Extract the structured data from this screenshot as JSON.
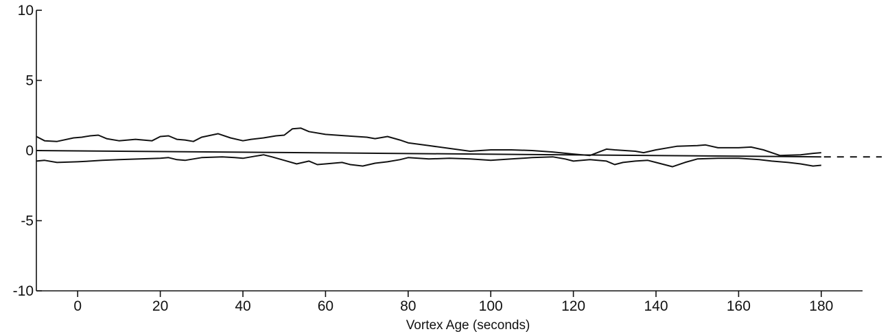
{
  "chart_data": {
    "type": "line",
    "xlabel": "Vortex Age (seconds)",
    "ylabel": "",
    "xlim": [
      -10,
      190
    ],
    "ylim": [
      -10,
      10
    ],
    "x_ticks": [
      0,
      20,
      40,
      60,
      80,
      100,
      120,
      140,
      160,
      180
    ],
    "y_ticks": [
      10,
      5,
      0,
      -5,
      -10
    ],
    "grid": false,
    "series": [
      {
        "role": "mean",
        "x": [
          -10,
          180
        ],
        "y": [
          0.0,
          -0.45
        ]
      },
      {
        "role": "upper bound",
        "x": [
          -10,
          -8,
          -5,
          -1,
          1,
          3,
          5,
          7,
          10,
          14,
          18,
          20,
          22,
          24,
          26,
          28,
          30,
          34,
          37,
          40,
          42,
          45,
          48,
          50,
          52,
          54,
          56,
          60,
          65,
          70,
          72,
          75,
          78,
          80,
          85,
          90,
          95,
          100,
          105,
          110,
          115,
          120,
          124,
          128,
          130,
          135,
          137,
          140,
          145,
          150,
          152,
          155,
          160,
          163,
          166,
          170,
          175,
          178,
          180
        ],
        "y": [
          1.0,
          0.7,
          0.65,
          0.9,
          0.95,
          1.05,
          1.1,
          0.85,
          0.7,
          0.8,
          0.7,
          1.0,
          1.05,
          0.8,
          0.75,
          0.65,
          0.95,
          1.2,
          0.9,
          0.7,
          0.8,
          0.9,
          1.05,
          1.1,
          1.55,
          1.6,
          1.35,
          1.15,
          1.05,
          0.95,
          0.85,
          1.0,
          0.75,
          0.55,
          0.35,
          0.15,
          -0.05,
          0.05,
          0.05,
          0.0,
          -0.1,
          -0.25,
          -0.35,
          0.1,
          0.05,
          -0.05,
          -0.15,
          0.05,
          0.3,
          0.35,
          0.4,
          0.2,
          0.2,
          0.25,
          0.05,
          -0.35,
          -0.3,
          -0.2,
          -0.15
        ]
      },
      {
        "role": "lower bound",
        "x": [
          -10,
          -8,
          -5,
          0,
          3,
          6,
          10,
          15,
          20,
          22,
          24,
          26,
          30,
          35,
          38,
          40,
          43,
          45,
          47,
          50,
          53,
          56,
          58,
          60,
          64,
          66,
          69,
          72,
          75,
          78,
          80,
          85,
          90,
          95,
          100,
          105,
          110,
          115,
          118,
          120,
          124,
          128,
          130,
          132,
          135,
          138,
          140,
          144,
          147,
          150,
          155,
          160,
          165,
          168,
          172,
          175,
          178,
          180
        ],
        "y": [
          -0.75,
          -0.7,
          -0.85,
          -0.8,
          -0.75,
          -0.7,
          -0.65,
          -0.6,
          -0.55,
          -0.5,
          -0.65,
          -0.7,
          -0.5,
          -0.45,
          -0.5,
          -0.55,
          -0.4,
          -0.3,
          -0.45,
          -0.7,
          -0.95,
          -0.75,
          -1.0,
          -0.95,
          -0.85,
          -1.0,
          -1.1,
          -0.9,
          -0.8,
          -0.65,
          -0.5,
          -0.6,
          -0.55,
          -0.6,
          -0.7,
          -0.6,
          -0.5,
          -0.45,
          -0.6,
          -0.75,
          -0.65,
          -0.75,
          -1.0,
          -0.85,
          -0.75,
          -0.7,
          -0.85,
          -1.15,
          -0.85,
          -0.6,
          -0.55,
          -0.55,
          -0.65,
          -0.75,
          -0.85,
          -0.95,
          -1.1,
          -1.05
        ]
      }
    ],
    "extension": {
      "style": "dashed",
      "x": [
        180,
        190
      ],
      "y": [
        -0.45,
        -0.45
      ]
    }
  }
}
